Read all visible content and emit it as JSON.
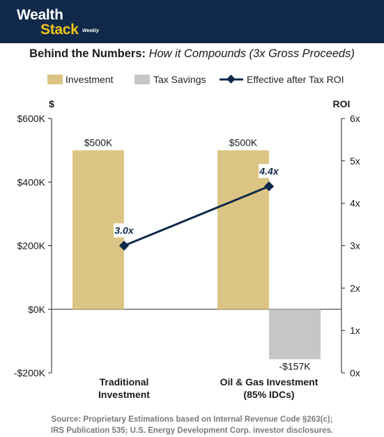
{
  "brand": {
    "line1": "Wealth",
    "line2": "Stack",
    "tag": "Weekly"
  },
  "title": {
    "bold": "Behind the Numbers:",
    "italic": "How it Compounds (3x Gross Proceeds)"
  },
  "legend": [
    {
      "label": "Investment",
      "color": "#dcc584"
    },
    {
      "label": "Tax Savings",
      "color": "#c6c6c6"
    },
    {
      "label": "Effective after Tax ROI",
      "color": "#10294a"
    }
  ],
  "source": {
    "line1": "Source: Proprietary Estimations based on Internal Revenue Code §263(c);",
    "line2": "IRS Publication 535; U.S. Energy Development Corp. investor disclosures."
  },
  "chart_data": {
    "type": "bar",
    "categories": [
      {
        "line1": "Traditional",
        "line2": "Investment"
      },
      {
        "line1": "Oil & Gas Investment",
        "line2": "(85% IDCs)"
      }
    ],
    "series": [
      {
        "name": "Investment",
        "values": [
          500000,
          500000
        ],
        "labels": [
          "$500K",
          "$500K"
        ],
        "color": "#dcc584"
      },
      {
        "name": "Tax Savings",
        "values": [
          0,
          -157000
        ],
        "labels": [
          "",
          "-$157K"
        ],
        "color": "#c6c6c6"
      }
    ],
    "line_series": {
      "name": "Effective after Tax ROI",
      "values": [
        3.0,
        4.4
      ],
      "labels": [
        "3.0x",
        "4.4x"
      ],
      "color": "#10294a",
      "axis": "right"
    },
    "y_left": {
      "label": "$",
      "min": -200000,
      "max": 600000,
      "ticks": [
        600000,
        400000,
        200000,
        0,
        -200000
      ],
      "tick_labels": [
        "$600K",
        "$400K",
        "$200K",
        "$0K",
        "-$200K"
      ]
    },
    "y_right": {
      "label": "ROI",
      "min": 0,
      "max": 6,
      "ticks": [
        6,
        5,
        4,
        3,
        2,
        1,
        0
      ],
      "tick_labels": [
        "6x",
        "5x",
        "4x",
        "3x",
        "2x",
        "1x",
        "0x"
      ]
    },
    "grid": false,
    "legend_position": "top"
  }
}
